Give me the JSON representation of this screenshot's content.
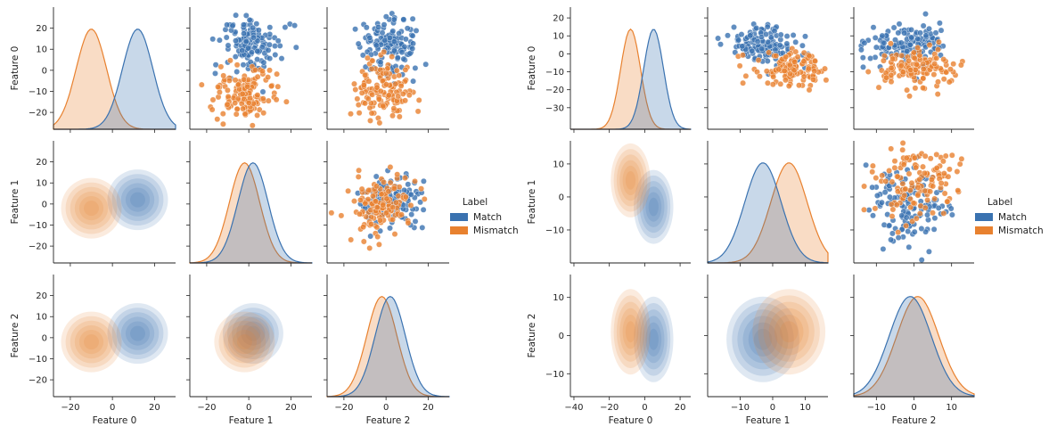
{
  "colors": {
    "match": "#3a72b0",
    "mismatch": "#e8812f",
    "kde_overlap": "#bfbfbf"
  },
  "legend": {
    "title": "Label",
    "entries": [
      "Match",
      "Mismatch"
    ]
  },
  "chart_data": [
    {
      "type": "pairplot",
      "variables": [
        "Feature 0",
        "Feature 1",
        "Feature 2"
      ],
      "series": [
        {
          "name": "Match"
        },
        {
          "name": "Mismatch"
        }
      ],
      "diag_kind": "kde",
      "upper_kind": "scatter",
      "lower_kind": "kde-filled",
      "axis_ranges": {
        "Feature 0": [
          -28,
          30
        ],
        "Feature 1": [
          -28,
          30
        ],
        "Feature 2": [
          -28,
          30
        ]
      },
      "ticks": {
        "Feature 0": [
          -20,
          -10,
          0,
          10,
          20
        ],
        "Feature 1": [
          -20,
          -10,
          0,
          10,
          20
        ],
        "Feature 2": [
          -20,
          -10,
          0,
          10,
          20
        ]
      },
      "x_ticks": {
        "Feature 0": [
          -20,
          0,
          20
        ],
        "Feature 1": [
          -20,
          0,
          20
        ],
        "Feature 2": [
          -20,
          0,
          20
        ]
      },
      "clusters": {
        "Match": {
          "Feature 0": 12,
          "Feature 1": 2,
          "Feature 2": 2,
          "spread": 9
        },
        "Mismatch": {
          "Feature 0": -10,
          "Feature 1": -2,
          "Feature 2": -2,
          "spread": 9
        }
      },
      "legend_position": "right"
    },
    {
      "type": "pairplot",
      "variables": [
        "Feature 0",
        "Feature 1",
        "Feature 2"
      ],
      "series": [
        {
          "name": "Match"
        },
        {
          "name": "Mismatch"
        }
      ],
      "diag_kind": "kde",
      "upper_kind": "scatter",
      "lower_kind": "kde-filled",
      "axis_ranges": {
        "Feature 0": [
          -42,
          26
        ],
        "Feature 1": [
          -20,
          17
        ],
        "Feature 2": [
          -16,
          16
        ]
      },
      "ticks": {
        "Feature 0": [
          -30,
          -20,
          -10,
          0,
          10,
          20
        ],
        "Feature 1": [
          -10,
          0,
          10
        ],
        "Feature 2": [
          -10,
          0,
          10
        ]
      },
      "x_ticks": {
        "Feature 0": [
          -40,
          -20,
          0,
          20
        ],
        "Feature 1": [
          -10,
          0,
          10
        ],
        "Feature 2": [
          -10,
          0,
          10
        ]
      },
      "clusters": {
        "Match": {
          "Feature 0": 5,
          "Feature 1": -3,
          "Feature 2": -1,
          "spread": 7
        },
        "Mismatch": {
          "Feature 0": -8,
          "Feature 1": 5,
          "Feature 2": 1,
          "spread": 7
        }
      },
      "legend_position": "right"
    }
  ]
}
